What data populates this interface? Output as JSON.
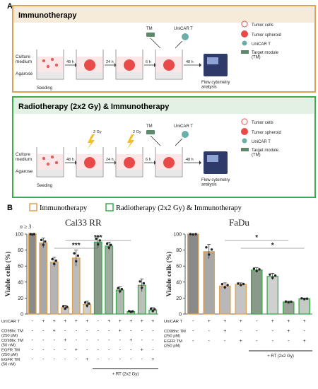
{
  "panel_a": {
    "letter": "A",
    "box1": {
      "title": "Immunotherapy",
      "border_color": "#e0a050",
      "culture_label": "Culture\nmedium",
      "agarose_label": "Agarose",
      "seeding_label": "Seeding",
      "steps": [
        "48 h",
        "24 h",
        "6 h",
        "48 h"
      ],
      "tm_label": "TM",
      "unicar_label": "UniCAR T",
      "flow_label": "Flow cytometry\nanalysis",
      "legend": [
        "Tumor cells",
        "Tumor spheroid",
        "UniCAR T",
        "Target module\n(TM)"
      ]
    },
    "box2": {
      "title": "Radiotherapy (2x2 Gy) & Immunotherapy",
      "border_color": "#3aaa4a",
      "culture_label": "Culture\nmedium",
      "agarose_label": "Agarose",
      "seeding_label": "Seeding",
      "steps": [
        "48 h",
        "24 h",
        "6 h",
        "48 h"
      ],
      "gy_label": "2 Gy",
      "tm_label": "TM",
      "unicar_label": "UniCAR T",
      "flow_label": "Flow cytometry\nanalysis",
      "legend": [
        "Tumor cells",
        "Tumor spheroid",
        "UniCAR T",
        "Target module\n(TM)"
      ]
    }
  },
  "panel_b": {
    "letter": "B",
    "legend": [
      {
        "label": "Immunotherapy",
        "color": "#e0a050"
      },
      {
        "label": "Radiotherapy (2x2 Gy) & Immunotherapy",
        "color": "#3aaa4a"
      }
    ]
  },
  "chart_data": [
    {
      "type": "bar",
      "title": "Cal33 RR",
      "n_note": "n ≥ 3",
      "ylabel": "Viable cells (%)",
      "ylim": [
        0,
        100
      ],
      "yticks": [
        0,
        20,
        40,
        60,
        80,
        100
      ],
      "values": [
        100,
        89,
        65,
        8,
        70,
        12,
        90,
        85,
        30,
        3,
        36,
        5
      ],
      "errors": [
        0,
        6,
        6,
        3,
        10,
        4,
        7,
        5,
        4,
        1,
        8,
        3
      ],
      "bar_fill": [
        "#8a8a8a",
        "#a8a8a8",
        "#b4b4b4",
        "#c6c6c6",
        "#bcbcbc",
        "#cfcfcf",
        "#8a9a8a",
        "#a0aca0",
        "#b0b8b0",
        "#c4cac4",
        "#b8c0b8",
        "#ccd2cc"
      ],
      "bar_edge": [
        "#e0a050",
        "#e0a050",
        "#e0a050",
        "#e0a050",
        "#e0a050",
        "#e0a050",
        "#3aaa4a",
        "#3aaa4a",
        "#3aaa4a",
        "#3aaa4a",
        "#3aaa4a",
        "#3aaa4a"
      ],
      "rows": [
        {
          "label": "UniCAR T",
          "signs": [
            "-",
            "+",
            "+",
            "+",
            "+",
            "+",
            "-",
            "+",
            "+",
            "+",
            "+",
            "+"
          ]
        },
        {
          "label": "CD98hc TM\n(250 pM)",
          "signs": [
            "-",
            "-",
            "+",
            "-",
            "-",
            "-",
            "-",
            "-",
            "+",
            "-",
            "-",
            "-"
          ]
        },
        {
          "label": "CD98hc TM\n(50 nM)",
          "signs": [
            "-",
            "-",
            "-",
            "+",
            "-",
            "-",
            "-",
            "-",
            "-",
            "+",
            "-",
            "-"
          ]
        },
        {
          "label": "EGFR TM\n(250 pM)",
          "signs": [
            "-",
            "-",
            "-",
            "-",
            "+",
            "-",
            "-",
            "-",
            "-",
            "-",
            "+",
            "-"
          ]
        },
        {
          "label": "EGFR TM\n(50 nM)",
          "signs": [
            "-",
            "-",
            "-",
            "-",
            "-",
            "+",
            "-",
            "-",
            "-",
            "-",
            "-",
            "+"
          ]
        }
      ],
      "rt_label": "+ RT (2x2 Gy)",
      "significance": [
        {
          "from": 3,
          "to": 9,
          "label": "***"
        },
        {
          "from": 2,
          "to": 6,
          "label": "***"
        }
      ]
    },
    {
      "type": "bar",
      "title": "FaDu",
      "ylabel": "Viable cells (%)",
      "ylim": [
        0,
        100
      ],
      "yticks": [
        0,
        20,
        40,
        60,
        80,
        100
      ],
      "values": [
        100,
        78,
        35,
        37,
        55,
        47,
        15,
        19
      ],
      "errors": [
        0,
        9,
        4,
        2,
        3,
        4,
        1,
        1
      ],
      "bar_fill": [
        "#8a8a8a",
        "#a8a8a8",
        "#b8b8b8",
        "#c4c4c4",
        "#8a9a8a",
        "#d0d0d0",
        "#9aa29a",
        "#c4cac4"
      ],
      "bar_edge": [
        "#e0a050",
        "#e0a050",
        "#e0a050",
        "#e0a050",
        "#3aaa4a",
        "#3aaa4a",
        "#3aaa4a",
        "#3aaa4a"
      ],
      "rows": [
        {
          "label": "UniCAR T",
          "signs": [
            "-",
            "+",
            "+",
            "+",
            "-",
            "+",
            "+",
            "+"
          ]
        },
        {
          "label": "CD98hc TM\n(250 pM)",
          "signs": [
            "-",
            "-",
            "+",
            "-",
            "-",
            "-",
            "+",
            "-"
          ]
        },
        {
          "label": "EGFR TM\n(250 pM)",
          "signs": [
            "-",
            "-",
            "-",
            "+",
            "-",
            "-",
            "-",
            "+"
          ]
        }
      ],
      "rt_label": "+ RT (2x2 Gy)",
      "significance": [
        {
          "from": 2,
          "to": 6,
          "label": "*"
        },
        {
          "from": 3,
          "to": 7,
          "label": "*"
        }
      ]
    }
  ]
}
